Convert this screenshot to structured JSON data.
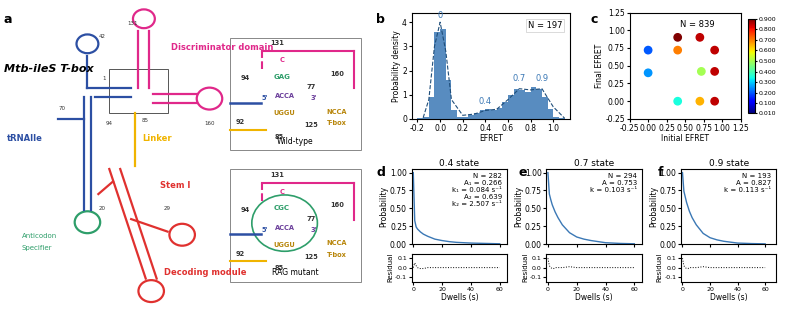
{
  "diagram": {
    "panel": "a",
    "title": "Mtb-ileS T-box",
    "labels": {
      "discriminator": "Discriminator domain",
      "trna": "tRNAIle",
      "linker": "Linker",
      "stem": "Stem I",
      "decoding": "Decoding module",
      "anticodon": "Anticodon",
      "specifier": "Specifier"
    },
    "numbers": [
      "42",
      "1",
      "70",
      "94",
      "131",
      "160",
      "20",
      "29",
      "85"
    ],
    "inset_texts": {
      "n131": "131",
      "c": "C",
      "n94": "94",
      "acca": "ACCA",
      "uggu": "UGGU",
      "n125": "125",
      "n77": "77",
      "p3": "3'",
      "p5": "5'",
      "n92": "92",
      "n85": "85",
      "n160": "160",
      "ncca": "NCCA",
      "tbox": "T-box"
    },
    "insets": [
      {
        "title": "Wild-type",
        "bulge": "GAG"
      },
      {
        "title": "RAG mutant",
        "bulge": "CGC"
      }
    ]
  },
  "chart_data": [
    {
      "type": "histogram",
      "panel": "b",
      "x_label": "EFRET",
      "y_label": "Probability density",
      "n_label": "N = 197",
      "color": "#3b78b5",
      "bins": [
        -0.2,
        -0.15,
        -0.1,
        -0.05,
        0.0,
        0.05,
        0.1,
        0.15,
        0.2,
        0.25,
        0.3,
        0.35,
        0.4,
        0.45,
        0.5,
        0.55,
        0.6,
        0.65,
        0.7,
        0.75,
        0.8,
        0.85,
        0.9,
        0.95,
        1.0,
        1.05,
        1.1
      ],
      "values": [
        0.02,
        0.1,
        0.9,
        3.6,
        3.7,
        1.6,
        0.35,
        0.1,
        0.1,
        0.15,
        0.25,
        0.35,
        0.4,
        0.35,
        0.45,
        0.7,
        1.0,
        1.25,
        1.2,
        1.1,
        1.3,
        1.25,
        0.9,
        0.4,
        0.1,
        0.02
      ],
      "fit": {
        "x": [
          -0.15,
          -0.1,
          -0.05,
          0.0,
          0.05,
          0.1,
          0.2,
          0.3,
          0.4,
          0.5,
          0.6,
          0.7,
          0.8,
          0.9,
          1.0,
          1.1
        ],
        "values": [
          0.05,
          0.8,
          3.0,
          4.0,
          2.8,
          0.8,
          0.15,
          0.2,
          0.35,
          0.4,
          0.8,
          1.25,
          1.2,
          1.25,
          0.5,
          0.03
        ],
        "color": "#1f4e7a",
        "line_style": "dashed"
      },
      "annotations": [
        {
          "text": "0",
          "x": 0.0,
          "y": 4.1
        },
        {
          "text": "0.4",
          "x": 0.4,
          "y": 0.55
        },
        {
          "text": "0.7",
          "x": 0.7,
          "y": 1.5
        },
        {
          "text": "0.9",
          "x": 0.9,
          "y": 1.5
        }
      ],
      "xlim": [
        -0.25,
        1.15
      ],
      "ylim": [
        0,
        4.4
      ],
      "xticks": [
        {
          "value": -0.2,
          "label": "-0.2"
        },
        {
          "value": 0.0,
          "label": "0.0"
        },
        {
          "value": 0.2,
          "label": "0.2"
        },
        {
          "value": 0.4,
          "label": "0.4"
        },
        {
          "value": 0.6,
          "label": "0.6"
        },
        {
          "value": 0.8,
          "label": "0.8"
        },
        {
          "value": 1.0,
          "label": "1.0"
        }
      ],
      "yticks": [
        0,
        1,
        2,
        3,
        4
      ]
    },
    {
      "type": "heatmap",
      "panel": "c",
      "x_label": "Initial EFRET",
      "y_label": "Final EFRET",
      "n_label": "N = 839",
      "cells": [
        {
          "x": 0.4,
          "y": 0.9,
          "value": 0.9
        },
        {
          "x": 0.7,
          "y": 0.9,
          "value": 0.85
        },
        {
          "x": 0.0,
          "y": 0.72,
          "value": 0.2
        },
        {
          "x": 0.4,
          "y": 0.72,
          "value": 0.7
        },
        {
          "x": 0.9,
          "y": 0.72,
          "value": 0.85
        },
        {
          "x": 0.0,
          "y": 0.4,
          "value": 0.25
        },
        {
          "x": 0.72,
          "y": 0.42,
          "value": 0.5
        },
        {
          "x": 0.9,
          "y": 0.42,
          "value": 0.85
        },
        {
          "x": 0.4,
          "y": 0.0,
          "value": 0.35
        },
        {
          "x": 0.7,
          "y": 0.0,
          "value": 0.65
        },
        {
          "x": 0.9,
          "y": 0.0,
          "value": 0.85
        }
      ],
      "colorbar": {
        "range": [
          0.01,
          0.9
        ],
        "ticks": [
          {
            "value": 0.01,
            "label": "0.010"
          },
          {
            "value": 0.1,
            "label": "0.100"
          },
          {
            "value": 0.2,
            "label": "0.200"
          },
          {
            "value": 0.3,
            "label": "0.300"
          },
          {
            "value": 0.4,
            "label": "0.400"
          },
          {
            "value": 0.5,
            "label": "0.500"
          },
          {
            "value": 0.6,
            "label": "0.600"
          },
          {
            "value": 0.7,
            "label": "0.700"
          },
          {
            "value": 0.8,
            "label": "0.800"
          },
          {
            "value": 0.9,
            "label": "0.900"
          }
        ]
      },
      "xlim": [
        -0.25,
        1.25
      ],
      "ylim": [
        -0.25,
        1.25
      ],
      "xticks": [
        {
          "value": -0.25,
          "label": "-0.25"
        },
        {
          "value": 0.0,
          "label": "0.00"
        },
        {
          "value": 0.25,
          "label": "0.25"
        },
        {
          "value": 0.5,
          "label": "0.50"
        },
        {
          "value": 0.75,
          "label": "0.75"
        },
        {
          "value": 1.0,
          "label": "1.00"
        },
        {
          "value": 1.25,
          "label": "1.25"
        }
      ],
      "yticks": [
        {
          "value": -0.25,
          "label": "-0.25"
        },
        {
          "value": 0.0,
          "label": "0.00"
        },
        {
          "value": 0.25,
          "label": "0.25"
        },
        {
          "value": 0.5,
          "label": "0.50"
        },
        {
          "value": 0.75,
          "label": "0.75"
        },
        {
          "value": 1.0,
          "label": "1.00"
        },
        {
          "value": 1.25,
          "label": "1.25"
        }
      ]
    },
    {
      "type": "line",
      "panel": "d",
      "title": "0.4 state",
      "x_label": "Dwells (s)",
      "y_label": "Probability",
      "tick_labels": "y",
      "color": "#3b78b5",
      "annotations": [
        "N = 282",
        "A₁ = 0.266",
        "k₁ = 0.084 s⁻¹",
        "A₂ = 0.639",
        "k₂ = 2.507 s⁻¹"
      ],
      "x": [
        0,
        1,
        2,
        3,
        4,
        5,
        7,
        10,
        15,
        20,
        25,
        30,
        40,
        50,
        60
      ],
      "values": [
        1.0,
        0.33,
        0.24,
        0.21,
        0.19,
        0.17,
        0.14,
        0.11,
        0.07,
        0.05,
        0.035,
        0.025,
        0.015,
        0.01,
        0.005
      ],
      "xlim": [
        -1,
        65
      ],
      "ylim": [
        0,
        1.05
      ],
      "xticks": [
        0,
        20,
        40,
        60
      ],
      "yticks": [
        {
          "value": 0.0,
          "label": "0.00"
        },
        {
          "value": 0.25,
          "label": "0.25"
        },
        {
          "value": 0.5,
          "label": "0.50"
        },
        {
          "value": 0.75,
          "label": "0.75"
        },
        {
          "value": 1.0,
          "label": "1.00"
        }
      ],
      "residual": {
        "y_label": "Residual",
        "values": [
          0.0,
          0.05,
          0.02,
          0.0,
          -0.01,
          -0.01,
          -0.01,
          0.0,
          0.0,
          0.0,
          0.0,
          0.0,
          0.0,
          0.0,
          0.0
        ],
        "color": "#000000",
        "line_style": "dotted",
        "ylim": [
          -0.15,
          0.15
        ],
        "yticks": [
          {
            "value": -0.1,
            "label": "-0.1"
          },
          {
            "value": 0.0,
            "label": "0.0"
          },
          {
            "value": 0.1,
            "label": "0.1"
          }
        ]
      }
    },
    {
      "type": "line",
      "panel": "e",
      "title": "0.7 state",
      "x_label": "Dwells (s)",
      "y_label": "Probability",
      "tick_labels": "y",
      "color": "#3b78b5",
      "annotations": [
        "N = 294",
        "A = 0.753",
        "k = 0.103 s⁻¹"
      ],
      "x": [
        0,
        1,
        2,
        3,
        4,
        5,
        7,
        10,
        15,
        20,
        25,
        30,
        40,
        50,
        60
      ],
      "values": [
        1.0,
        0.7,
        0.62,
        0.55,
        0.5,
        0.45,
        0.37,
        0.27,
        0.16,
        0.1,
        0.07,
        0.05,
        0.02,
        0.01,
        0.005
      ],
      "xlim": [
        -1,
        65
      ],
      "ylim": [
        0,
        1.05
      ],
      "xticks": [
        0,
        20,
        40,
        60
      ],
      "yticks": [
        {
          "value": 0.0,
          "label": "0.00"
        },
        {
          "value": 0.25,
          "label": "0.25"
        },
        {
          "value": 0.5,
          "label": "0.50"
        },
        {
          "value": 0.75,
          "label": "0.75"
        },
        {
          "value": 1.0,
          "label": "1.00"
        }
      ],
      "residual": {
        "y_label": "Residual",
        "values": [
          0.1,
          0.02,
          0.0,
          -0.01,
          -0.01,
          0.0,
          0.0,
          0.0,
          0.01,
          0.0,
          0.0,
          0.0,
          0.0,
          0.0,
          0.0
        ],
        "color": "#000000",
        "line_style": "dotted",
        "ylim": [
          -0.15,
          0.15
        ],
        "yticks": [
          {
            "value": -0.1,
            "label": "-0.1"
          },
          {
            "value": 0.0,
            "label": "0.0"
          },
          {
            "value": 0.1,
            "label": "0.1"
          }
        ]
      }
    },
    {
      "type": "line",
      "panel": "f",
      "title": "0.9 state",
      "x_label": "Dwells (s)",
      "y_label": "Probability",
      "tick_labels": "y",
      "color": "#3b78b5",
      "annotations": [
        "N = 193",
        "A = 0.827",
        "k = 0.113 s⁻¹"
      ],
      "x": [
        0,
        1,
        2,
        3,
        4,
        5,
        7,
        10,
        15,
        20,
        25,
        30,
        40,
        50,
        60
      ],
      "values": [
        1.0,
        0.74,
        0.66,
        0.58,
        0.52,
        0.46,
        0.37,
        0.27,
        0.15,
        0.09,
        0.06,
        0.04,
        0.015,
        0.008,
        0.004
      ],
      "xlim": [
        -1,
        68
      ],
      "ylim": [
        0,
        1.05
      ],
      "xticks": [
        0,
        20,
        40,
        60
      ],
      "yticks": [
        {
          "value": 0.0,
          "label": "0.00"
        },
        {
          "value": 0.25,
          "label": "0.25"
        },
        {
          "value": 0.5,
          "label": "0.50"
        },
        {
          "value": 0.75,
          "label": "0.75"
        },
        {
          "value": 1.0,
          "label": "1.00"
        }
      ],
      "residual": {
        "y_label": "Residual",
        "values": [
          0.1,
          0.02,
          0.0,
          -0.01,
          -0.01,
          0.0,
          0.0,
          0.0,
          0.01,
          0.0,
          0.0,
          0.0,
          0.0,
          0.0,
          0.0
        ],
        "color": "#000000",
        "line_style": "dotted",
        "ylim": [
          -0.15,
          0.15
        ],
        "yticks": [
          {
            "value": -0.1,
            "label": "-0.1"
          },
          {
            "value": 0.0,
            "label": "0.0"
          },
          {
            "value": 0.1,
            "label": "0.1"
          }
        ]
      }
    }
  ]
}
